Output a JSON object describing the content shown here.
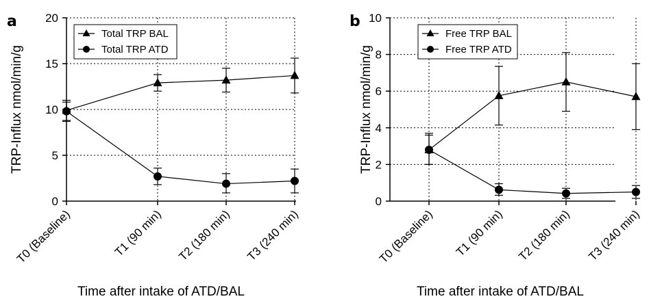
{
  "chart_data": [
    {
      "type": "line",
      "panel_label": "a",
      "categories": [
        "T0 (Baseline)",
        "T1 (90 min)",
        "T2 (180 min)",
        "T3 (240 min)"
      ],
      "xlabel": "Time after intake of ATD/BAL",
      "ylabel": "TRP-Influx nmol/min/g",
      "ylim": [
        0,
        20
      ],
      "yticks": [
        0,
        5,
        10,
        15,
        20
      ],
      "grid": true,
      "legend_position": "top-left",
      "series": [
        {
          "name": "Total TRP BAL",
          "marker": "triangle",
          "values": [
            9.9,
            12.9,
            13.2,
            13.7
          ],
          "err_upper": [
            11.0,
            13.8,
            14.5,
            15.6
          ],
          "err_lower": [
            8.7,
            12.0,
            11.9,
            11.8
          ]
        },
        {
          "name": "Total TRP ATD",
          "marker": "circle",
          "values": [
            9.8,
            2.7,
            1.9,
            2.2
          ],
          "err_upper": [
            10.8,
            3.6,
            3.0,
            3.5
          ],
          "err_lower": [
            8.8,
            1.8,
            0.9,
            0.9
          ]
        }
      ]
    },
    {
      "type": "line",
      "panel_label": "b",
      "categories": [
        "T0 (Baseline)",
        "T1 (90 min)",
        "T2 (180 min)",
        "T3 (240 min)"
      ],
      "xlabel": "Time after intake of ATD/BAL",
      "ylabel": "TRP-Influx nmol/min/g",
      "ylim": [
        0,
        10
      ],
      "yticks": [
        0,
        2,
        4,
        6,
        8,
        10
      ],
      "grid": true,
      "legend_position": "top-left",
      "series": [
        {
          "name": "Free TRP BAL",
          "marker": "triangle",
          "values": [
            2.8,
            5.75,
            6.5,
            5.7
          ],
          "err_upper": [
            3.7,
            7.35,
            8.1,
            7.5
          ],
          "err_lower": [
            2.0,
            4.15,
            4.9,
            3.9
          ]
        },
        {
          "name": "Free TRP ATD",
          "marker": "circle",
          "values": [
            2.8,
            0.62,
            0.42,
            0.5
          ],
          "err_upper": [
            3.6,
            0.95,
            0.7,
            0.85
          ],
          "err_lower": [
            2.0,
            0.32,
            0.15,
            0.15
          ]
        }
      ]
    }
  ]
}
